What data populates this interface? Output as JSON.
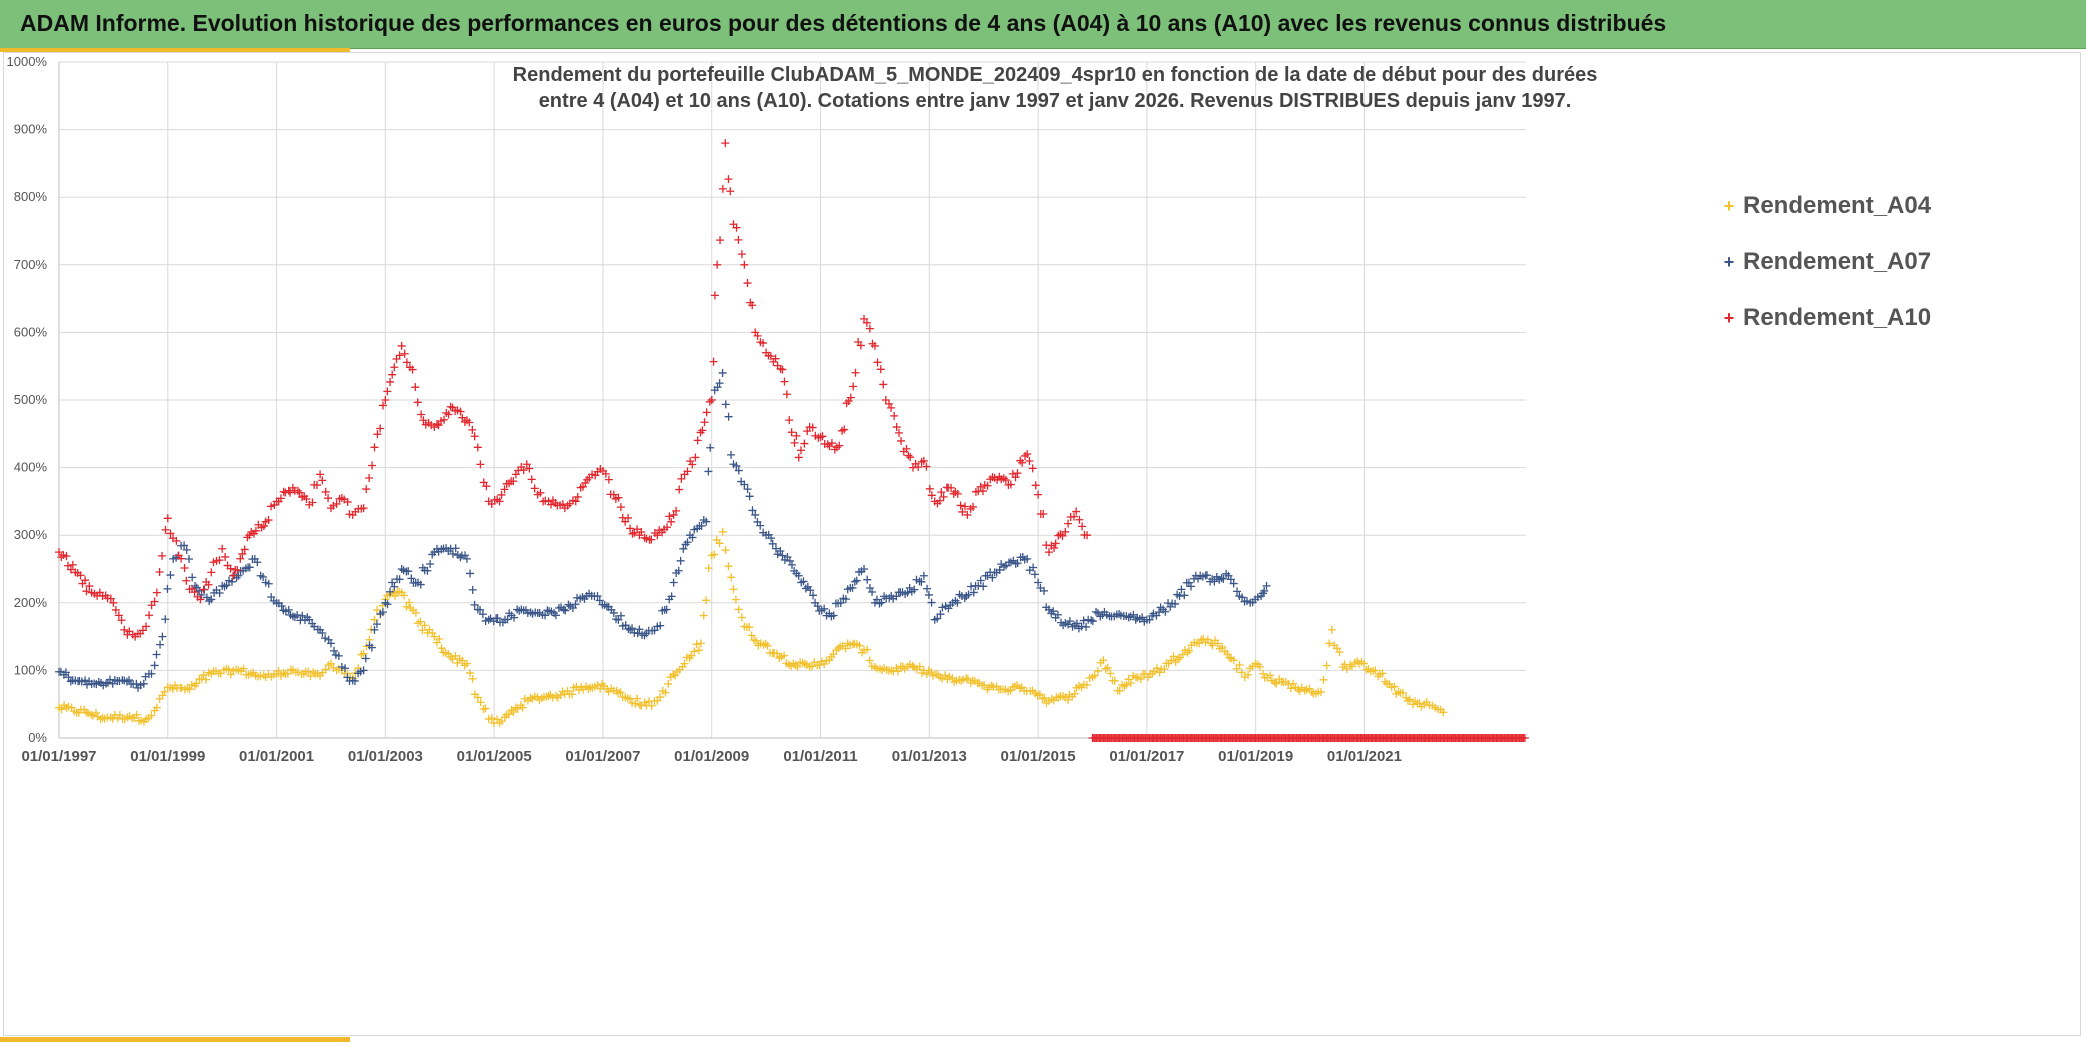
{
  "header": {
    "title": "ADAM Informe. Evolution historique des performances en euros pour des détentions de 4 ans (A04) à 10 ans (A10) avec les revenus connus distribués"
  },
  "chart_data": {
    "type": "scatter",
    "title_line1": "Rendement du portefeuille ClubADAM_5_MONDE_202409_4spr10  en fonction de la date de début pour des durées",
    "title_line2": "entre 4 (A04) et 10 ans (A10). Cotations entre janv 1997 et janv 2026. Revenus DISTRIBUES depuis janv 1997.",
    "xlabel": "",
    "ylabel": "",
    "x_range": [
      1997.0,
      2023.97
    ],
    "y_range": [
      0,
      1000
    ],
    "y_ticks": [
      "0%",
      "100%",
      "200%",
      "300%",
      "400%",
      "500%",
      "600%",
      "700%",
      "800%",
      "900%",
      "1000%"
    ],
    "x_ticks": [
      "01/01/1997",
      "01/01/1999",
      "01/01/2001",
      "01/01/2003",
      "01/01/2005",
      "01/01/2007",
      "01/01/2009",
      "01/01/2011",
      "01/01/2013",
      "01/01/2015",
      "01/01/2017",
      "01/01/2019",
      "01/01/2021"
    ],
    "grid": true,
    "legend_position": "top-right",
    "marker": "+",
    "series": [
      {
        "name": "Rendement_A04",
        "color": "#f2c12e",
        "points": [
          [
            1997.0,
            45
          ],
          [
            1997.5,
            38
          ],
          [
            1997.8,
            30
          ],
          [
            1998.3,
            32
          ],
          [
            1998.6,
            28
          ],
          [
            1998.8,
            45
          ],
          [
            1999.0,
            75
          ],
          [
            1999.4,
            72
          ],
          [
            1999.8,
            95
          ],
          [
            2000.3,
            100
          ],
          [
            2000.8,
            90
          ],
          [
            2001.0,
            95
          ],
          [
            2001.3,
            100
          ],
          [
            2001.5,
            95
          ],
          [
            2001.8,
            92
          ],
          [
            2002.0,
            110
          ],
          [
            2002.2,
            100
          ],
          [
            2002.4,
            88
          ],
          [
            2002.6,
            125
          ],
          [
            2002.8,
            175
          ],
          [
            2003.0,
            205
          ],
          [
            2003.3,
            215
          ],
          [
            2003.6,
            170
          ],
          [
            2003.9,
            150
          ],
          [
            2004.2,
            120
          ],
          [
            2004.5,
            110
          ],
          [
            2004.7,
            60
          ],
          [
            2004.9,
            28
          ],
          [
            2005.1,
            22
          ],
          [
            2005.4,
            45
          ],
          [
            2005.7,
            58
          ],
          [
            2006.0,
            62
          ],
          [
            2006.3,
            65
          ],
          [
            2006.6,
            75
          ],
          [
            2006.9,
            78
          ],
          [
            2007.2,
            70
          ],
          [
            2007.5,
            58
          ],
          [
            2007.8,
            48
          ],
          [
            2008.0,
            55
          ],
          [
            2008.2,
            80
          ],
          [
            2008.5,
            110
          ],
          [
            2008.8,
            140
          ],
          [
            2009.0,
            270
          ],
          [
            2009.2,
            305
          ],
          [
            2009.4,
            220
          ],
          [
            2009.6,
            165
          ],
          [
            2009.9,
            140
          ],
          [
            2010.2,
            125
          ],
          [
            2010.5,
            110
          ],
          [
            2010.8,
            105
          ],
          [
            2011.2,
            120
          ],
          [
            2011.5,
            140
          ],
          [
            2011.8,
            130
          ],
          [
            2012.0,
            105
          ],
          [
            2012.3,
            100
          ],
          [
            2012.6,
            105
          ],
          [
            2012.9,
            100
          ],
          [
            2013.2,
            90
          ],
          [
            2013.5,
            85
          ],
          [
            2013.8,
            85
          ],
          [
            2014.1,
            75
          ],
          [
            2014.4,
            72
          ],
          [
            2014.7,
            75
          ],
          [
            2014.9,
            70
          ],
          [
            2015.2,
            55
          ],
          [
            2015.5,
            60
          ],
          [
            2015.8,
            75
          ],
          [
            2016.0,
            90
          ],
          [
            2016.2,
            115
          ],
          [
            2016.5,
            70
          ],
          [
            2016.8,
            90
          ],
          [
            2017.1,
            95
          ],
          [
            2017.4,
            110
          ],
          [
            2017.7,
            130
          ],
          [
            2018.0,
            145
          ],
          [
            2018.3,
            140
          ],
          [
            2018.6,
            115
          ],
          [
            2018.8,
            90
          ],
          [
            2019.0,
            110
          ],
          [
            2019.3,
            85
          ],
          [
            2019.6,
            80
          ],
          [
            2019.9,
            70
          ],
          [
            2020.2,
            68
          ],
          [
            2020.4,
            160
          ],
          [
            2020.6,
            105
          ],
          [
            2020.9,
            110
          ],
          [
            2021.2,
            100
          ],
          [
            2021.5,
            75
          ],
          [
            2021.8,
            55
          ],
          [
            2022.1,
            50
          ],
          [
            2022.3,
            45
          ],
          [
            2022.45,
            38
          ]
        ]
      },
      {
        "name": "Rendement_A07",
        "color": "#3b5688",
        "points": [
          [
            1997.0,
            98
          ],
          [
            1997.3,
            85
          ],
          [
            1997.6,
            80
          ],
          [
            1997.9,
            82
          ],
          [
            1998.2,
            85
          ],
          [
            1998.5,
            78
          ],
          [
            1998.7,
            95
          ],
          [
            1998.9,
            150
          ],
          [
            1999.1,
            265
          ],
          [
            1999.3,
            285
          ],
          [
            1999.5,
            225
          ],
          [
            1999.8,
            205
          ],
          [
            2000.0,
            225
          ],
          [
            2000.3,
            240
          ],
          [
            2000.6,
            265
          ],
          [
            2000.8,
            230
          ],
          [
            2001.0,
            200
          ],
          [
            2001.3,
            180
          ],
          [
            2001.6,
            175
          ],
          [
            2001.8,
            160
          ],
          [
            2002.0,
            140
          ],
          [
            2002.2,
            105
          ],
          [
            2002.4,
            85
          ],
          [
            2002.6,
            100
          ],
          [
            2002.8,
            160
          ],
          [
            2003.0,
            200
          ],
          [
            2003.3,
            250
          ],
          [
            2003.6,
            230
          ],
          [
            2003.9,
            275
          ],
          [
            2004.2,
            280
          ],
          [
            2004.5,
            265
          ],
          [
            2004.7,
            190
          ],
          [
            2004.9,
            175
          ],
          [
            2005.2,
            175
          ],
          [
            2005.5,
            190
          ],
          [
            2005.8,
            185
          ],
          [
            2006.1,
            185
          ],
          [
            2006.4,
            195
          ],
          [
            2006.7,
            210
          ],
          [
            2006.9,
            210
          ],
          [
            2007.2,
            185
          ],
          [
            2007.5,
            160
          ],
          [
            2007.8,
            155
          ],
          [
            2008.0,
            165
          ],
          [
            2008.3,
            230
          ],
          [
            2008.6,
            300
          ],
          [
            2008.9,
            320
          ],
          [
            2009.0,
            500
          ],
          [
            2009.2,
            540
          ],
          [
            2009.4,
            405
          ],
          [
            2009.6,
            375
          ],
          [
            2009.8,
            330
          ],
          [
            2010.0,
            300
          ],
          [
            2010.3,
            270
          ],
          [
            2010.6,
            240
          ],
          [
            2010.9,
            200
          ],
          [
            2011.2,
            180
          ],
          [
            2011.5,
            220
          ],
          [
            2011.8,
            250
          ],
          [
            2012.0,
            200
          ],
          [
            2012.3,
            210
          ],
          [
            2012.6,
            215
          ],
          [
            2012.9,
            240
          ],
          [
            2013.1,
            175
          ],
          [
            2013.3,
            195
          ],
          [
            2013.6,
            210
          ],
          [
            2013.9,
            225
          ],
          [
            2014.2,
            245
          ],
          [
            2014.5,
            260
          ],
          [
            2014.8,
            265
          ],
          [
            2015.0,
            230
          ],
          [
            2015.2,
            190
          ],
          [
            2015.5,
            170
          ],
          [
            2015.8,
            165
          ],
          [
            2016.1,
            185
          ],
          [
            2016.4,
            180
          ],
          [
            2016.7,
            180
          ],
          [
            2017.0,
            175
          ],
          [
            2017.3,
            190
          ],
          [
            2017.6,
            210
          ],
          [
            2017.9,
            240
          ],
          [
            2018.2,
            235
          ],
          [
            2018.5,
            240
          ],
          [
            2018.7,
            210
          ],
          [
            2018.9,
            200
          ],
          [
            2019.1,
            210
          ],
          [
            2019.2,
            225
          ]
        ]
      },
      {
        "name": "Rendement_A10",
        "color": "#e3272e",
        "points": [
          [
            1997.0,
            275
          ],
          [
            1997.3,
            245
          ],
          [
            1997.6,
            215
          ],
          [
            1997.8,
            210
          ],
          [
            1998.0,
            200
          ],
          [
            1998.2,
            160
          ],
          [
            1998.4,
            150
          ],
          [
            1998.6,
            165
          ],
          [
            1998.8,
            215
          ],
          [
            1999.0,
            325
          ],
          [
            1999.2,
            270
          ],
          [
            1999.4,
            220
          ],
          [
            1999.6,
            205
          ],
          [
            1999.8,
            245
          ],
          [
            2000.0,
            280
          ],
          [
            2000.2,
            240
          ],
          [
            2000.5,
            300
          ],
          [
            2000.8,
            320
          ],
          [
            2001.0,
            350
          ],
          [
            2001.3,
            370
          ],
          [
            2001.6,
            345
          ],
          [
            2001.8,
            390
          ],
          [
            2002.0,
            340
          ],
          [
            2002.2,
            355
          ],
          [
            2002.4,
            330
          ],
          [
            2002.6,
            340
          ],
          [
            2002.8,
            430
          ],
          [
            2003.0,
            500
          ],
          [
            2003.3,
            580
          ],
          [
            2003.5,
            545
          ],
          [
            2003.7,
            470
          ],
          [
            2003.9,
            460
          ],
          [
            2004.2,
            490
          ],
          [
            2004.5,
            470
          ],
          [
            2004.7,
            430
          ],
          [
            2004.9,
            350
          ],
          [
            2005.1,
            350
          ],
          [
            2005.4,
            390
          ],
          [
            2005.6,
            405
          ],
          [
            2005.8,
            360
          ],
          [
            2006.0,
            350
          ],
          [
            2006.3,
            340
          ],
          [
            2006.5,
            350
          ],
          [
            2006.8,
            390
          ],
          [
            2007.0,
            395
          ],
          [
            2007.2,
            360
          ],
          [
            2007.5,
            310
          ],
          [
            2007.8,
            295
          ],
          [
            2008.0,
            300
          ],
          [
            2008.3,
            330
          ],
          [
            2008.5,
            390
          ],
          [
            2008.7,
            415
          ],
          [
            2009.0,
            500
          ],
          [
            2009.1,
            700
          ],
          [
            2009.25,
            880
          ],
          [
            2009.4,
            760
          ],
          [
            2009.6,
            700
          ],
          [
            2009.8,
            600
          ],
          [
            2010.0,
            570
          ],
          [
            2010.3,
            545
          ],
          [
            2010.6,
            415
          ],
          [
            2010.8,
            460
          ],
          [
            2011.0,
            445
          ],
          [
            2011.3,
            430
          ],
          [
            2011.6,
            520
          ],
          [
            2011.8,
            620
          ],
          [
            2012.0,
            580
          ],
          [
            2012.2,
            500
          ],
          [
            2012.4,
            460
          ],
          [
            2012.7,
            400
          ],
          [
            2012.9,
            410
          ],
          [
            2013.1,
            350
          ],
          [
            2013.4,
            370
          ],
          [
            2013.7,
            330
          ],
          [
            2013.9,
            365
          ],
          [
            2014.2,
            385
          ],
          [
            2014.5,
            375
          ],
          [
            2014.8,
            420
          ],
          [
            2015.0,
            360
          ],
          [
            2015.2,
            275
          ],
          [
            2015.5,
            305
          ],
          [
            2015.7,
            335
          ],
          [
            2015.9,
            300
          ]
        ]
      },
      {
        "name": "Rendement_A10",
        "color": "#e3272e",
        "segment": "flat_zero",
        "points": [
          [
            2016.0,
            0
          ],
          [
            2023.97,
            0
          ]
        ]
      }
    ]
  }
}
